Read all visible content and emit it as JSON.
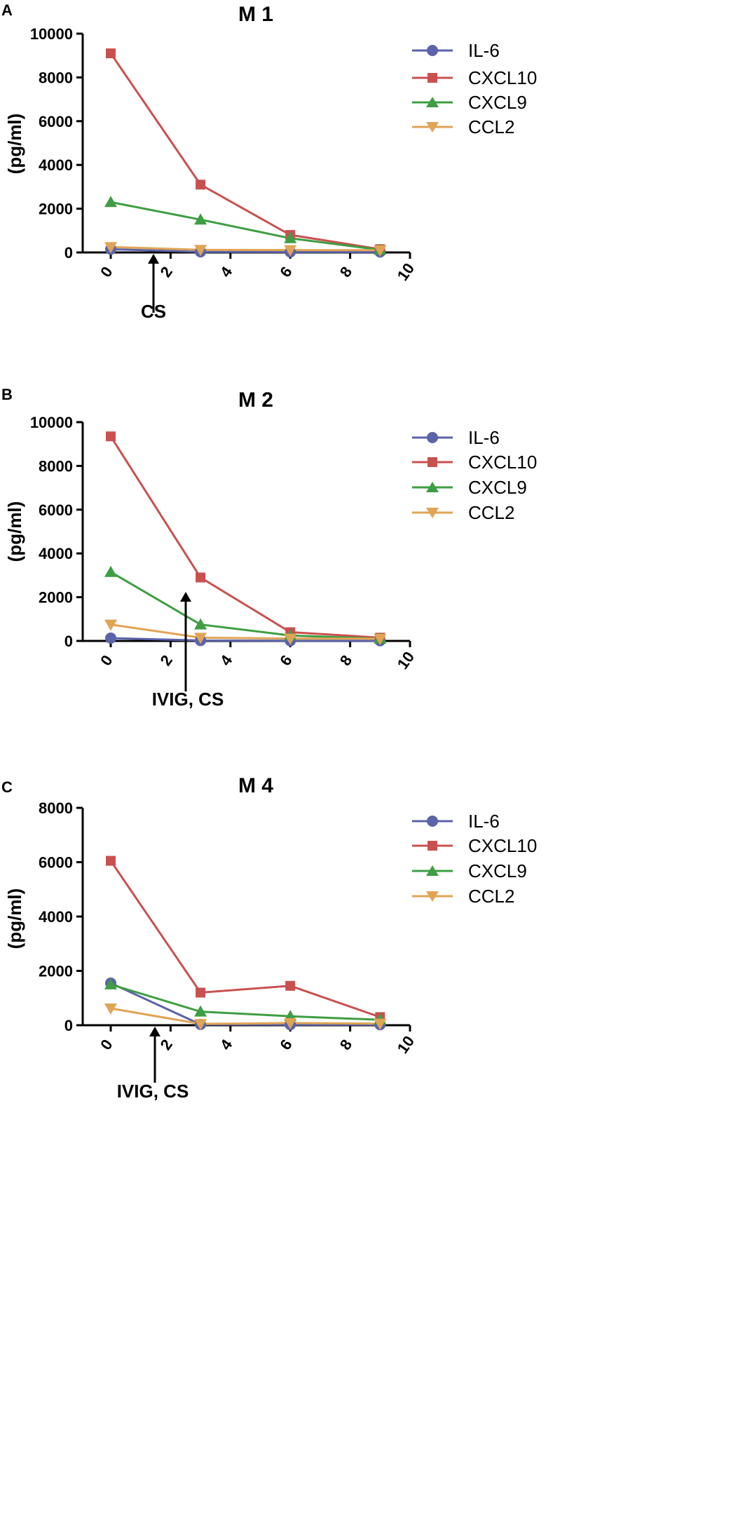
{
  "chart_data": [
    {
      "type": "line",
      "panel": "A",
      "title": "M 1",
      "xlabel": "",
      "ylabel": "(pg/ml)",
      "xlim": [
        0,
        10
      ],
      "ylim": [
        0,
        10000
      ],
      "xticks": [
        "0",
        "2",
        "4",
        "6",
        "8",
        "10"
      ],
      "yticks": [
        "0",
        "2000",
        "4000",
        "6000",
        "8000",
        "10000"
      ],
      "x": [
        0,
        3,
        6,
        9
      ],
      "series": [
        {
          "name": "IL-6",
          "values": [
            150,
            30,
            20,
            20
          ],
          "color": "#5B63A9",
          "marker": "circle"
        },
        {
          "name": "CXCL10",
          "values": [
            9100,
            3100,
            800,
            150
          ],
          "color": "#C8514F",
          "marker": "square"
        },
        {
          "name": "CXCL9",
          "values": [
            2300,
            1500,
            650,
            120
          ],
          "color": "#3E9E43",
          "marker": "triangle-up"
        },
        {
          "name": "CCL2",
          "values": [
            250,
            120,
            110,
            100
          ],
          "color": "#E0A455",
          "marker": "triangle-down"
        }
      ],
      "annotation": {
        "label": "CS",
        "x": 1.5
      }
    },
    {
      "type": "line",
      "panel": "B",
      "title": "M 2",
      "xlabel": "",
      "ylabel": "(pg/ml)",
      "xlim": [
        0,
        10
      ],
      "ylim": [
        0,
        10000
      ],
      "xticks": [
        "0",
        "2",
        "4",
        "6",
        "8",
        "10"
      ],
      "yticks": [
        "0",
        "2000",
        "4000",
        "6000",
        "8000",
        "10000"
      ],
      "x": [
        0,
        3,
        6,
        9
      ],
      "series": [
        {
          "name": "IL-6",
          "values": [
            130,
            20,
            10,
            10
          ],
          "color": "#5B63A9",
          "marker": "circle"
        },
        {
          "name": "CXCL10",
          "values": [
            9350,
            2900,
            400,
            150
          ],
          "color": "#C8514F",
          "marker": "square"
        },
        {
          "name": "CXCL9",
          "values": [
            3150,
            750,
            250,
            100
          ],
          "color": "#3E9E43",
          "marker": "triangle-up"
        },
        {
          "name": "CCL2",
          "values": [
            750,
            150,
            110,
            100
          ],
          "color": "#E0A455",
          "marker": "triangle-down"
        }
      ],
      "annotation": {
        "label": "IVIG, CS",
        "x": 2.5
      }
    },
    {
      "type": "line",
      "panel": "C",
      "title": "M 4",
      "xlabel": "",
      "ylabel": "(pg/ml)",
      "xlim": [
        0,
        10
      ],
      "ylim": [
        0,
        8000
      ],
      "xticks": [
        "0",
        "2",
        "4",
        "6",
        "8",
        "10"
      ],
      "yticks": [
        "0",
        "2000",
        "4000",
        "6000",
        "8000"
      ],
      "x": [
        0,
        3,
        6,
        9
      ],
      "series": [
        {
          "name": "IL-6",
          "values": [
            1550,
            30,
            20,
            20
          ],
          "color": "#5B63A9",
          "marker": "circle"
        },
        {
          "name": "CXCL10",
          "values": [
            6050,
            1200,
            1450,
            300
          ],
          "color": "#C8514F",
          "marker": "square"
        },
        {
          "name": "CXCL9",
          "values": [
            1500,
            500,
            330,
            200
          ],
          "color": "#3E9E43",
          "marker": "triangle-up"
        },
        {
          "name": "CCL2",
          "values": [
            620,
            50,
            80,
            60
          ],
          "color": "#E0A455",
          "marker": "triangle-down"
        }
      ],
      "annotation": {
        "label": "IVIG, CS",
        "x": 1.5
      }
    }
  ]
}
